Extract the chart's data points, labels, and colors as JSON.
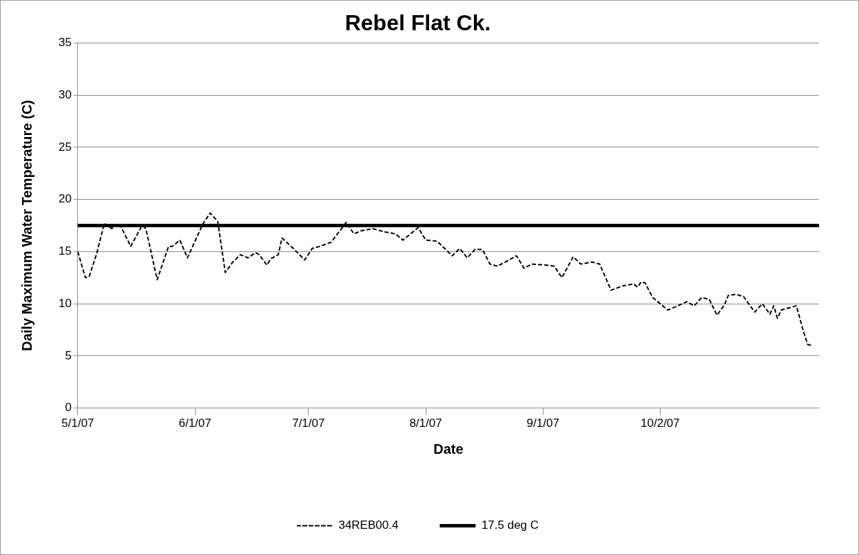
{
  "chart_data": {
    "type": "line",
    "title": "Rebel Flat Ck.",
    "xlabel": "Date",
    "ylabel": "Daily Maximum Water Temperature (C)",
    "series": [
      {
        "name": "34REB00.4",
        "color": "#000000",
        "line_style": "dashed",
        "x": [
          "2007-05-01",
          "2007-05-03",
          "2007-05-04",
          "2007-05-06",
          "2007-05-08",
          "2007-05-10",
          "2007-05-12",
          "2007-05-15",
          "2007-05-18",
          "2007-05-19",
          "2007-05-22",
          "2007-05-25",
          "2007-05-26",
          "2007-05-28",
          "2007-05-30",
          "2007-06-03",
          "2007-06-05",
          "2007-06-07",
          "2007-06-09",
          "2007-06-11",
          "2007-06-13",
          "2007-06-15",
          "2007-06-17",
          "2007-06-18",
          "2007-06-20",
          "2007-06-21",
          "2007-06-23",
          "2007-06-24",
          "2007-06-27",
          "2007-06-30",
          "2007-07-02",
          "2007-07-04",
          "2007-07-07",
          "2007-07-11",
          "2007-07-13",
          "2007-07-15",
          "2007-07-18",
          "2007-07-21",
          "2007-07-24",
          "2007-07-26",
          "2007-07-30",
          "2007-08-01",
          "2007-08-04",
          "2007-08-08",
          "2007-08-10",
          "2007-08-12",
          "2007-08-14",
          "2007-08-16",
          "2007-08-18",
          "2007-08-20",
          "2007-08-22",
          "2007-08-25",
          "2007-08-27",
          "2007-08-29",
          "2007-09-02",
          "2007-09-04",
          "2007-09-06",
          "2007-09-09",
          "2007-09-11",
          "2007-09-14",
          "2007-09-16",
          "2007-09-19",
          "2007-09-22",
          "2007-09-25",
          "2007-09-26",
          "2007-09-27",
          "2007-09-28",
          "2007-09-30",
          "2007-10-02",
          "2007-10-04",
          "2007-10-06",
          "2007-10-09",
          "2007-10-11",
          "2007-10-13",
          "2007-10-15",
          "2007-10-17",
          "2007-10-19",
          "2007-10-20",
          "2007-10-22",
          "2007-10-24",
          "2007-10-27",
          "2007-10-29",
          "2007-10-31",
          "2007-11-01",
          "2007-11-02",
          "2007-11-03",
          "2007-11-06",
          "2007-11-07",
          "2007-11-09",
          "2007-11-10",
          "2007-11-11"
        ],
        "values": [
          15,
          12.5,
          12.6,
          14.8,
          17.7,
          17.2,
          17.7,
          15.5,
          17.5,
          17.2,
          12.3,
          15.5,
          15.5,
          16.1,
          14.4,
          17.6,
          18.7,
          17.9,
          13.0,
          14.0,
          14.7,
          14.4,
          14.9,
          14.7,
          13.7,
          14.3,
          14.7,
          16.3,
          15.3,
          14.2,
          15.3,
          15.5,
          15.9,
          17.8,
          16.7,
          17.0,
          17.2,
          16.9,
          16.7,
          16.1,
          17.3,
          16.1,
          16.0,
          14.6,
          15.3,
          14.4,
          15.2,
          15.2,
          13.8,
          13.6,
          14.0,
          14.6,
          13.4,
          13.8,
          13.7,
          13.6,
          12.5,
          14.5,
          13.8,
          14.0,
          13.8,
          11.3,
          11.7,
          11.9,
          11.6,
          12.1,
          12.0,
          10.6,
          10.0,
          9.4,
          9.7,
          10.2,
          9.8,
          10.6,
          10.4,
          8.9,
          9.9,
          10.8,
          10.9,
          10.7,
          9.2,
          10.0,
          9.0,
          9.8,
          8.6,
          9.4,
          9.7,
          9.8,
          7.2,
          6.1,
          6.0
        ]
      }
    ],
    "ref_lines": [
      {
        "axis": "y",
        "value": 17.5,
        "label": "17.5 deg C",
        "color": "#000000",
        "line_style": "solid"
      }
    ],
    "xlim": [
      "2007-05-01",
      "2007-11-13"
    ],
    "xticks": [
      {
        "value": "2007-05-01",
        "label": "5/1/07"
      },
      {
        "value": "2007-06-01",
        "label": "6/1/07"
      },
      {
        "value": "2007-07-01",
        "label": "7/1/07"
      },
      {
        "value": "2007-08-01",
        "label": "8/1/07"
      },
      {
        "value": "2007-09-01",
        "label": "9/1/07"
      },
      {
        "value": "2007-10-02",
        "label": "10/2/07"
      }
    ],
    "ylim": [
      0,
      35
    ],
    "yticks": [
      0,
      5,
      10,
      15,
      20,
      25,
      30,
      35
    ],
    "grid": "y",
    "legend": "bottom",
    "marker": "none"
  }
}
